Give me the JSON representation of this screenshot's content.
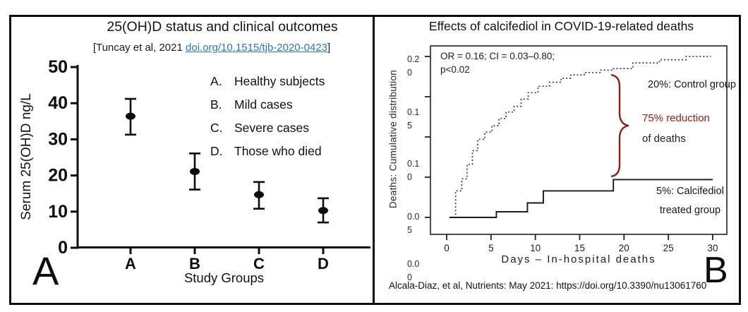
{
  "colors": {
    "link_blue": "#2e74b5",
    "dark_red": "#8b2015",
    "control_curve": "#3c3c3c",
    "treated_curve": "#1a1a1a",
    "axis_black": "#0d0d0d"
  },
  "panel_a": {
    "letter": "A",
    "title": "25(OH)D status and clinical outcomes",
    "citation_prefix": "[Tuncay et al, 2021 ",
    "citation_link": "doi.org/10.1515/tjb-2020-0423",
    "citation_suffix": "]",
    "y_axis_title": "Serum 25(OH)D ng/L",
    "x_axis_title": "Study Groups",
    "legend": [
      {
        "key": "A.",
        "label": "Healthy subjects"
      },
      {
        "key": "B.",
        "label": "Mild cases"
      },
      {
        "key": "C.",
        "label": "Severe cases"
      },
      {
        "key": "D.",
        "label": "Those who died"
      }
    ]
  },
  "panel_b": {
    "letter": "B",
    "title": "Effects of calcifediol in COVID-19-related deaths",
    "stats_line1": "OR = 0.16; CI = 0.03–0.80;",
    "stats_line2": "p<0.02",
    "y_axis_title": "Deaths: Cumulative distribution",
    "x_axis_title": "Days – In-hospital deaths",
    "control_label": "20%: Control group",
    "reduction_line1": "75% reduction",
    "reduction_line2": "of deaths",
    "treated_line1": "5%: Calcifediol",
    "treated_line2": "treated group",
    "citation": "Alcala-Diaz, et al, Nutrients: May 2021: https://doi.org/10.3390/nu13061760"
  },
  "chart_data": [
    {
      "type": "scatter",
      "subtype": "mean-with-error-bars",
      "title": "25(OH)D status and clinical outcomes",
      "xlabel": "Study Groups",
      "ylabel": "Serum 25(OH)D ng/L",
      "categories": [
        "A",
        "B",
        "C",
        "D"
      ],
      "category_meanings": [
        "Healthy subjects",
        "Mild cases",
        "Severe cases",
        "Those who died"
      ],
      "means": [
        36.4,
        21.1,
        14.7,
        10.3
      ],
      "ci_low": [
        31.3,
        16.1,
        10.8,
        7.0
      ],
      "ci_high": [
        41.2,
        26.1,
        18.2,
        13.7
      ],
      "ylim": [
        0,
        50
      ],
      "yticks": [
        0,
        10,
        20,
        30,
        40,
        50
      ],
      "grid": false,
      "marker": "filled-ellipse"
    },
    {
      "type": "line",
      "subtype": "step-cumulative",
      "title": "Effects of calcifediol in COVID-19-related deaths",
      "xlabel": "Days – In-hospital deaths",
      "ylabel": "Deaths: Cumulative distribution",
      "xlim": [
        -2,
        32
      ],
      "ylim": [
        0,
        0.21
      ],
      "xticks": [
        0,
        5,
        10,
        15,
        20,
        25,
        30
      ],
      "yticks": [
        0.2,
        0.15,
        0.1,
        0.05,
        0.0
      ],
      "ytick_labels": [
        [
          "0.2",
          "0"
        ],
        [
          "0.1",
          "5"
        ],
        [
          "0.1",
          "0"
        ],
        [
          "0.0",
          "5"
        ],
        [
          "0.0",
          "0"
        ]
      ],
      "grid": false,
      "stats": "OR = 0.16; CI = 0.03–0.80; p<0.02",
      "series": [
        {
          "name": "Control group",
          "style": "dotted",
          "final_value": 0.2,
          "end_day": 29.8,
          "points": [
            [
              0.9,
              0
            ],
            [
              1.0,
              0.033
            ],
            [
              1.7,
              0.048
            ],
            [
              2.3,
              0.066
            ],
            [
              2.9,
              0.083
            ],
            [
              3.5,
              0.097
            ],
            [
              4.3,
              0.106
            ],
            [
              5.1,
              0.114
            ],
            [
              5.9,
              0.123
            ],
            [
              6.7,
              0.131
            ],
            [
              7.6,
              0.138
            ],
            [
              8.4,
              0.147
            ],
            [
              9.2,
              0.155
            ],
            [
              10.3,
              0.163
            ],
            [
              11.6,
              0.168
            ],
            [
              12.9,
              0.173
            ],
            [
              14.0,
              0.177
            ],
            [
              15.5,
              0.18
            ],
            [
              17.3,
              0.183
            ],
            [
              18.6,
              0.185
            ],
            [
              21.0,
              0.192
            ],
            [
              24.0,
              0.196
            ],
            [
              27.0,
              0.2
            ]
          ]
        },
        {
          "name": "Calcifediol treated group",
          "style": "solid",
          "final_value": 0.047,
          "end_day": 30.0,
          "points": [
            [
              0.3,
              0
            ],
            [
              5.6,
              0.007
            ],
            [
              9.1,
              0.018
            ],
            [
              10.9,
              0.033
            ],
            [
              18.8,
              0.047
            ]
          ]
        }
      ],
      "annotations": [
        "20%: Control group",
        "75% reduction of deaths",
        "5%: Calcifediol treated group"
      ]
    }
  ]
}
